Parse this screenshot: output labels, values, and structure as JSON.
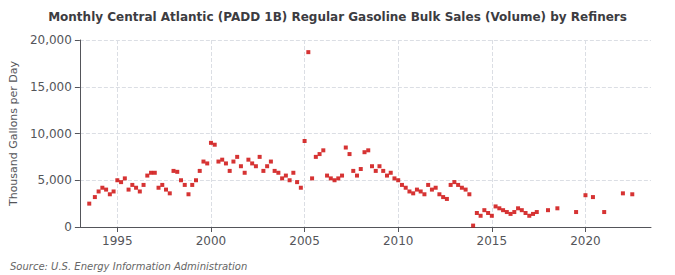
{
  "chart_data": {
    "type": "scatter",
    "title": "Monthly Central Atlantic (PADD 1B) Regular Gasoline Bulk Sales (Volume) by Refiners",
    "ylabel": "Thousand Gallons per Day",
    "annotations": [
      "Source: U.S. Energy Information Administration"
    ],
    "color": "#cc0000",
    "marker": "square",
    "grid": true,
    "xlim": [
      1993.0,
      2023.5
    ],
    "xticks": [
      1995,
      2000,
      2005,
      2010,
      2015,
      2020
    ],
    "ylim": [
      0,
      20000
    ],
    "yticks": [
      0,
      {
        "value": 5000,
        "label": "5,000"
      },
      {
        "value": 10000,
        "label": "10,000"
      },
      {
        "value": 15000,
        "label": "15,000"
      },
      {
        "value": 20000,
        "label": "20,000"
      }
    ],
    "x": [
      1993.5,
      1993.8,
      1994.0,
      1994.2,
      1994.4,
      1994.6,
      1994.8,
      1995.0,
      1995.2,
      1995.4,
      1995.6,
      1995.8,
      1996.0,
      1996.2,
      1996.4,
      1996.6,
      1996.8,
      1997.0,
      1997.2,
      1997.4,
      1997.6,
      1997.8,
      1998.0,
      1998.2,
      1998.4,
      1998.6,
      1998.8,
      1999.0,
      1999.2,
      1999.4,
      1999.6,
      1999.8,
      2000.0,
      2000.2,
      2000.4,
      2000.6,
      2000.8,
      2001.0,
      2001.2,
      2001.4,
      2001.6,
      2001.8,
      2002.0,
      2002.2,
      2002.4,
      2002.6,
      2002.8,
      2003.0,
      2003.2,
      2003.4,
      2003.6,
      2003.8,
      2004.0,
      2004.2,
      2004.4,
      2004.6,
      2004.8,
      2005.0,
      2005.2,
      2005.4,
      2005.6,
      2005.8,
      2006.0,
      2006.2,
      2006.4,
      2006.6,
      2006.8,
      2007.0,
      2007.2,
      2007.4,
      2007.6,
      2007.8,
      2008.0,
      2008.2,
      2008.4,
      2008.6,
      2008.8,
      2009.0,
      2009.2,
      2009.4,
      2009.6,
      2009.8,
      2010.0,
      2010.2,
      2010.4,
      2010.6,
      2010.8,
      2011.0,
      2011.2,
      2011.4,
      2011.6,
      2011.8,
      2012.0,
      2012.2,
      2012.4,
      2012.6,
      2012.8,
      2013.0,
      2013.2,
      2013.4,
      2013.6,
      2013.8,
      2014.0,
      2014.2,
      2014.4,
      2014.6,
      2014.8,
      2015.0,
      2015.2,
      2015.4,
      2015.6,
      2015.8,
      2016.0,
      2016.2,
      2016.4,
      2016.6,
      2016.8,
      2017.0,
      2017.2,
      2017.4,
      2018.0,
      2018.5,
      2019.5,
      2020.0,
      2020.4,
      2021.0,
      2022.0,
      2022.5
    ],
    "values": [
      2500,
      3200,
      3800,
      4200,
      4000,
      3500,
      3800,
      5000,
      4800,
      5200,
      4000,
      4500,
      4200,
      3800,
      4500,
      5500,
      5800,
      5800,
      4200,
      4500,
      4000,
      3600,
      6000,
      5900,
      5000,
      4500,
      3500,
      4500,
      5000,
      6000,
      7000,
      6800,
      9000,
      8800,
      7000,
      7200,
      6800,
      6000,
      7000,
      7500,
      6500,
      5800,
      7200,
      6800,
      6500,
      7500,
      6000,
      6500,
      7000,
      6000,
      5800,
      5200,
      5500,
      5000,
      5800,
      4800,
      4200,
      9200,
      18700,
      5200,
      7500,
      7800,
      8200,
      5500,
      5200,
      5000,
      5200,
      5500,
      8500,
      7800,
      6000,
      5500,
      6200,
      8000,
      8200,
      6500,
      6000,
      6500,
      6000,
      5500,
      5800,
      5200,
      5000,
      4500,
      4200,
      3800,
      3600,
      4000,
      3800,
      3500,
      4500,
      4000,
      4200,
      3500,
      3200,
      3000,
      4500,
      4800,
      4500,
      4200,
      4000,
      3500,
      150,
      1500,
      1200,
      1800,
      1500,
      1200,
      2200,
      2000,
      1800,
      1600,
      1400,
      1600,
      2000,
      1800,
      1500,
      1200,
      1400,
      1600,
      1800,
      2000,
      1600,
      3400,
      3200,
      1600,
      3600,
      3500
    ]
  }
}
